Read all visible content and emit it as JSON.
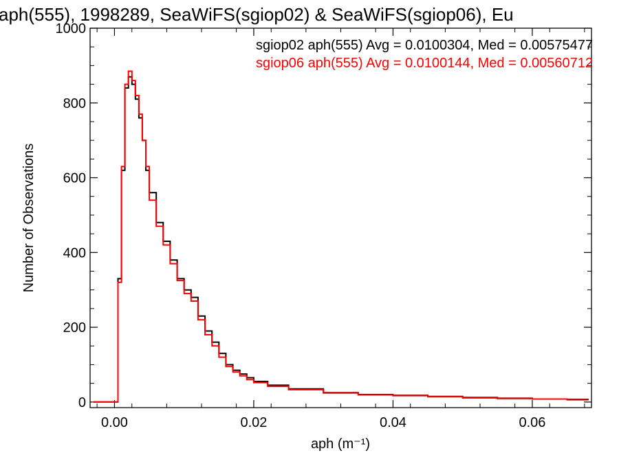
{
  "chart_data": {
    "type": "line",
    "title": "aph(555), 1998289, SeaWiFS(sgiop02) & SeaWiFS(sgiop06), Eu",
    "xlabel": "aph (m⁻¹)",
    "ylabel": "Number of Observations",
    "xlim": [
      -0.0035,
      0.0685
    ],
    "ylim": [
      -15,
      1000
    ],
    "x_ticks": [
      0.0,
      0.02,
      0.04,
      0.06
    ],
    "x_tick_labels": [
      "0.00",
      "0.02",
      "0.04",
      "0.06"
    ],
    "y_ticks": [
      0,
      200,
      400,
      600,
      800,
      1000
    ],
    "y_tick_labels": [
      "0",
      "200",
      "400",
      "600",
      "800",
      "1000"
    ],
    "grid": false,
    "legend_position": "top-right",
    "series": [
      {
        "name": "sgiop02 aph(555) Avg = 0.0100304, Med = 0.00575477",
        "color": "#000000",
        "x": [
          -0.003,
          0.0,
          0.0005,
          0.001,
          0.0015,
          0.002,
          0.0025,
          0.003,
          0.0035,
          0.004,
          0.0045,
          0.005,
          0.006,
          0.007,
          0.008,
          0.009,
          0.01,
          0.011,
          0.012,
          0.013,
          0.014,
          0.015,
          0.016,
          0.017,
          0.018,
          0.019,
          0.02,
          0.022,
          0.025,
          0.03,
          0.035,
          0.04,
          0.045,
          0.05,
          0.055,
          0.06,
          0.065,
          0.068
        ],
        "y": [
          0,
          0,
          330,
          620,
          840,
          870,
          850,
          810,
          760,
          700,
          620,
          560,
          480,
          430,
          380,
          330,
          300,
          280,
          230,
          190,
          160,
          130,
          100,
          85,
          75,
          65,
          55,
          45,
          35,
          25,
          20,
          18,
          15,
          12,
          10,
          8,
          7,
          5
        ]
      },
      {
        "name": "sgiop06 aph(555) Avg = 0.0100144, Med = 0.00560712",
        "color": "#ff0000",
        "x": [
          -0.003,
          0.0,
          0.0005,
          0.001,
          0.0015,
          0.002,
          0.0025,
          0.003,
          0.0035,
          0.004,
          0.0045,
          0.005,
          0.006,
          0.007,
          0.008,
          0.009,
          0.01,
          0.011,
          0.012,
          0.013,
          0.014,
          0.015,
          0.016,
          0.017,
          0.018,
          0.019,
          0.02,
          0.022,
          0.025,
          0.03,
          0.035,
          0.04,
          0.045,
          0.05,
          0.055,
          0.06,
          0.065,
          0.068
        ],
        "y": [
          0,
          0,
          320,
          630,
          850,
          885,
          860,
          820,
          770,
          700,
          630,
          540,
          470,
          420,
          370,
          325,
          290,
          270,
          220,
          180,
          150,
          120,
          95,
          80,
          70,
          60,
          52,
          42,
          33,
          24,
          19,
          17,
          14,
          11,
          9,
          8,
          6,
          5
        ]
      }
    ]
  }
}
